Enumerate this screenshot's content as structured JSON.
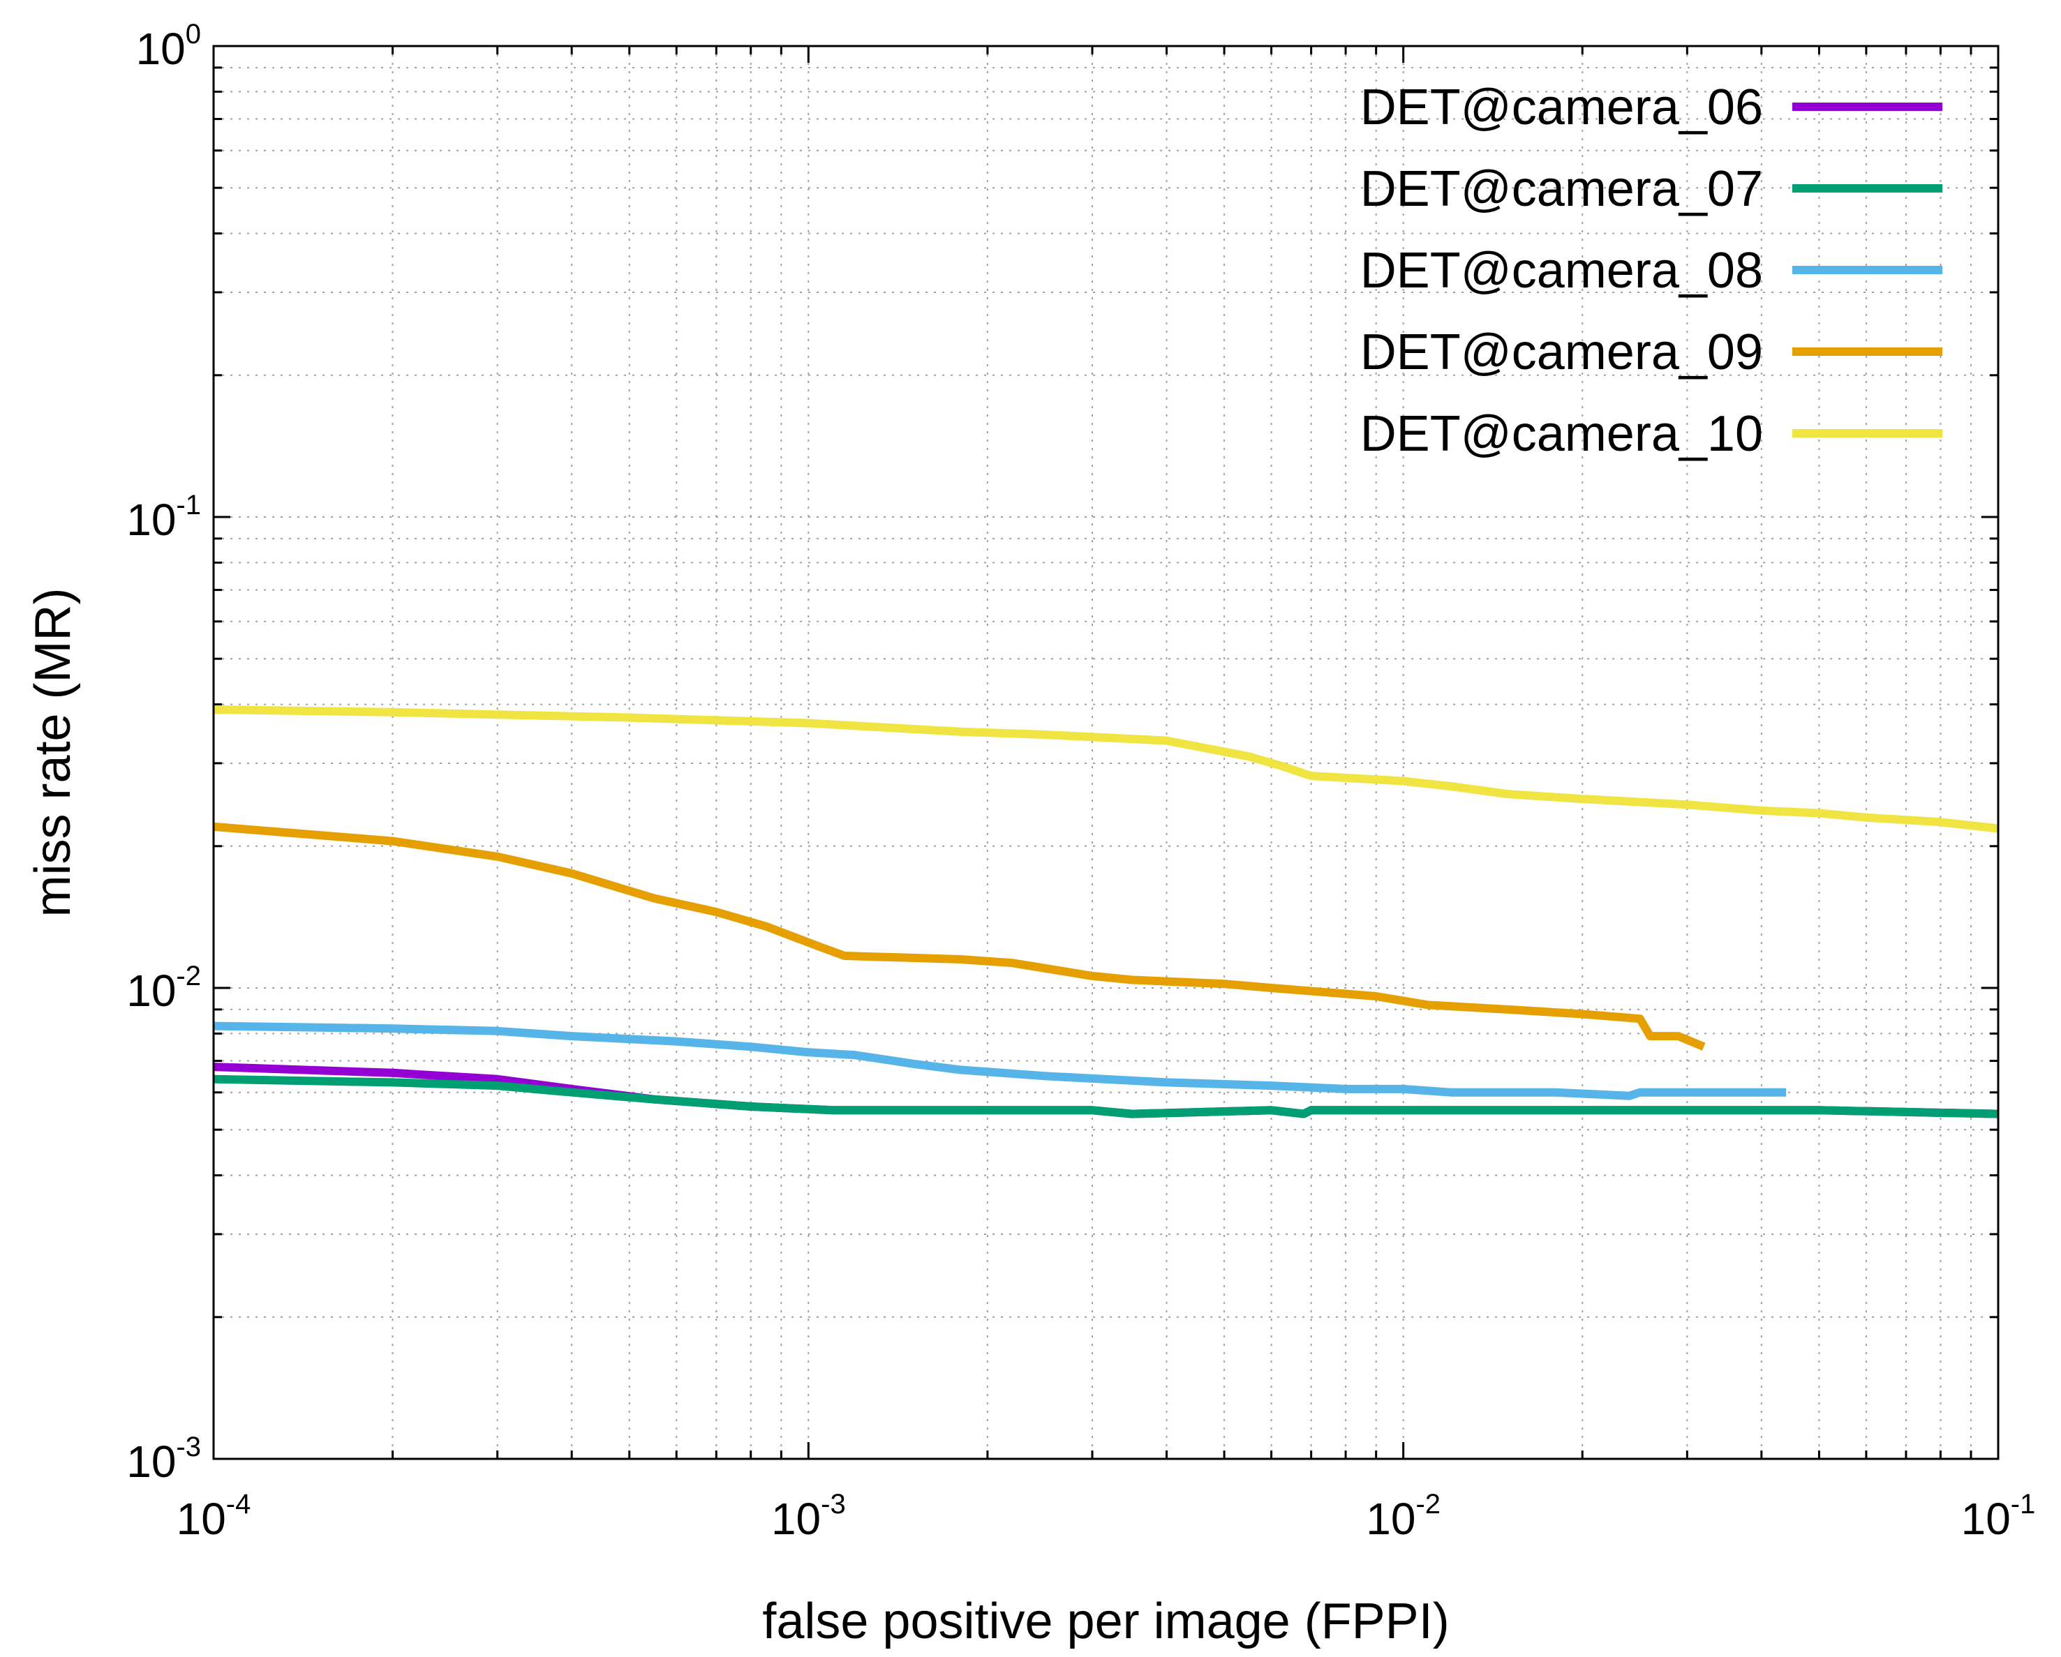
{
  "chart_data": {
    "type": "line",
    "xlabel": "false positive per image (FPPI)",
    "ylabel": "miss rate (MR)",
    "x_scale": "log",
    "y_scale": "log",
    "xlim": [
      0.0001,
      0.1
    ],
    "ylim": [
      0.001,
      1
    ],
    "x_ticks": [
      {
        "base": "10",
        "exp": "-4",
        "value": 0.0001
      },
      {
        "base": "10",
        "exp": "-3",
        "value": 0.001
      },
      {
        "base": "10",
        "exp": "-2",
        "value": 0.01
      },
      {
        "base": "10",
        "exp": "-1",
        "value": 0.1
      }
    ],
    "y_ticks": [
      {
        "base": "10",
        "exp": "0",
        "value": 1
      },
      {
        "base": "10",
        "exp": "-1",
        "value": 0.1
      },
      {
        "base": "10",
        "exp": "-2",
        "value": 0.01
      },
      {
        "base": "10",
        "exp": "-3",
        "value": 0.001
      }
    ],
    "grid": true,
    "legend_position": "top-right",
    "series": [
      {
        "name": "DET@camera_06",
        "color": "#9400d3",
        "points": [
          [
            0.0001,
            0.0068
          ],
          [
            0.0002,
            0.0066
          ],
          [
            0.0003,
            0.0064
          ],
          [
            0.0004,
            0.0061
          ],
          [
            0.00055,
            0.0058
          ],
          [
            0.0008,
            0.0056
          ],
          [
            0.0011,
            0.0055
          ],
          [
            0.002,
            0.0055
          ],
          [
            0.003,
            0.0055
          ],
          [
            0.0035,
            0.0054
          ],
          [
            0.006,
            0.0055
          ],
          [
            0.0068,
            0.0054
          ],
          [
            0.007,
            0.0055
          ],
          [
            0.01,
            0.0055
          ],
          [
            0.02,
            0.0055
          ],
          [
            0.05,
            0.0055
          ],
          [
            0.1,
            0.0054
          ]
        ]
      },
      {
        "name": "DET@camera_07",
        "color": "#009e73",
        "points": [
          [
            0.0001,
            0.0064
          ],
          [
            0.0002,
            0.0063
          ],
          [
            0.0003,
            0.0062
          ],
          [
            0.0004,
            0.006
          ],
          [
            0.00055,
            0.0058
          ],
          [
            0.0008,
            0.0056
          ],
          [
            0.0011,
            0.0055
          ],
          [
            0.002,
            0.0055
          ],
          [
            0.003,
            0.0055
          ],
          [
            0.0035,
            0.0054
          ],
          [
            0.006,
            0.0055
          ],
          [
            0.0068,
            0.0054
          ],
          [
            0.007,
            0.0055
          ],
          [
            0.01,
            0.0055
          ],
          [
            0.02,
            0.0055
          ],
          [
            0.05,
            0.0055
          ],
          [
            0.1,
            0.0054
          ]
        ]
      },
      {
        "name": "DET@camera_08",
        "color": "#56b4e9",
        "points": [
          [
            0.0001,
            0.0083
          ],
          [
            0.0002,
            0.0082
          ],
          [
            0.0003,
            0.0081
          ],
          [
            0.0004,
            0.0079
          ],
          [
            0.0006,
            0.0077
          ],
          [
            0.0008,
            0.0075
          ],
          [
            0.001,
            0.0073
          ],
          [
            0.0012,
            0.0072
          ],
          [
            0.0015,
            0.0069
          ],
          [
            0.0018,
            0.0067
          ],
          [
            0.0025,
            0.0065
          ],
          [
            0.004,
            0.0063
          ],
          [
            0.006,
            0.0062
          ],
          [
            0.008,
            0.0061
          ],
          [
            0.01,
            0.0061
          ],
          [
            0.012,
            0.006
          ],
          [
            0.018,
            0.006
          ],
          [
            0.024,
            0.0059
          ],
          [
            0.025,
            0.006
          ],
          [
            0.03,
            0.006
          ],
          [
            0.044,
            0.006
          ]
        ]
      },
      {
        "name": "DET@camera_09",
        "color": "#e69f00",
        "points": [
          [
            0.0001,
            0.022
          ],
          [
            0.0002,
            0.0205
          ],
          [
            0.0003,
            0.019
          ],
          [
            0.0004,
            0.0175
          ],
          [
            0.00055,
            0.0155
          ],
          [
            0.0007,
            0.0145
          ],
          [
            0.00085,
            0.0135
          ],
          [
            0.00105,
            0.0122
          ],
          [
            0.00115,
            0.0117
          ],
          [
            0.0018,
            0.0115
          ],
          [
            0.0022,
            0.0113
          ],
          [
            0.003,
            0.0106
          ],
          [
            0.0035,
            0.0104
          ],
          [
            0.005,
            0.0102
          ],
          [
            0.006,
            0.01
          ],
          [
            0.009,
            0.0096
          ],
          [
            0.011,
            0.0092
          ],
          [
            0.015,
            0.009
          ],
          [
            0.02,
            0.0088
          ],
          [
            0.025,
            0.0086
          ],
          [
            0.026,
            0.0079
          ],
          [
            0.029,
            0.0079
          ],
          [
            0.032,
            0.0075
          ]
        ]
      },
      {
        "name": "DET@camera_10",
        "color": "#f0e442",
        "points": [
          [
            0.0001,
            0.039
          ],
          [
            0.0002,
            0.0385
          ],
          [
            0.0005,
            0.0375
          ],
          [
            0.001,
            0.0365
          ],
          [
            0.0018,
            0.035
          ],
          [
            0.0025,
            0.0345
          ],
          [
            0.004,
            0.0335
          ],
          [
            0.0055,
            0.031
          ],
          [
            0.0063,
            0.0295
          ],
          [
            0.007,
            0.0282
          ],
          [
            0.01,
            0.0275
          ],
          [
            0.012,
            0.0268
          ],
          [
            0.015,
            0.0258
          ],
          [
            0.02,
            0.0252
          ],
          [
            0.03,
            0.0245
          ],
          [
            0.04,
            0.0238
          ],
          [
            0.05,
            0.0235
          ],
          [
            0.06,
            0.023
          ],
          [
            0.08,
            0.0225
          ],
          [
            0.1,
            0.0218
          ]
        ]
      }
    ]
  }
}
